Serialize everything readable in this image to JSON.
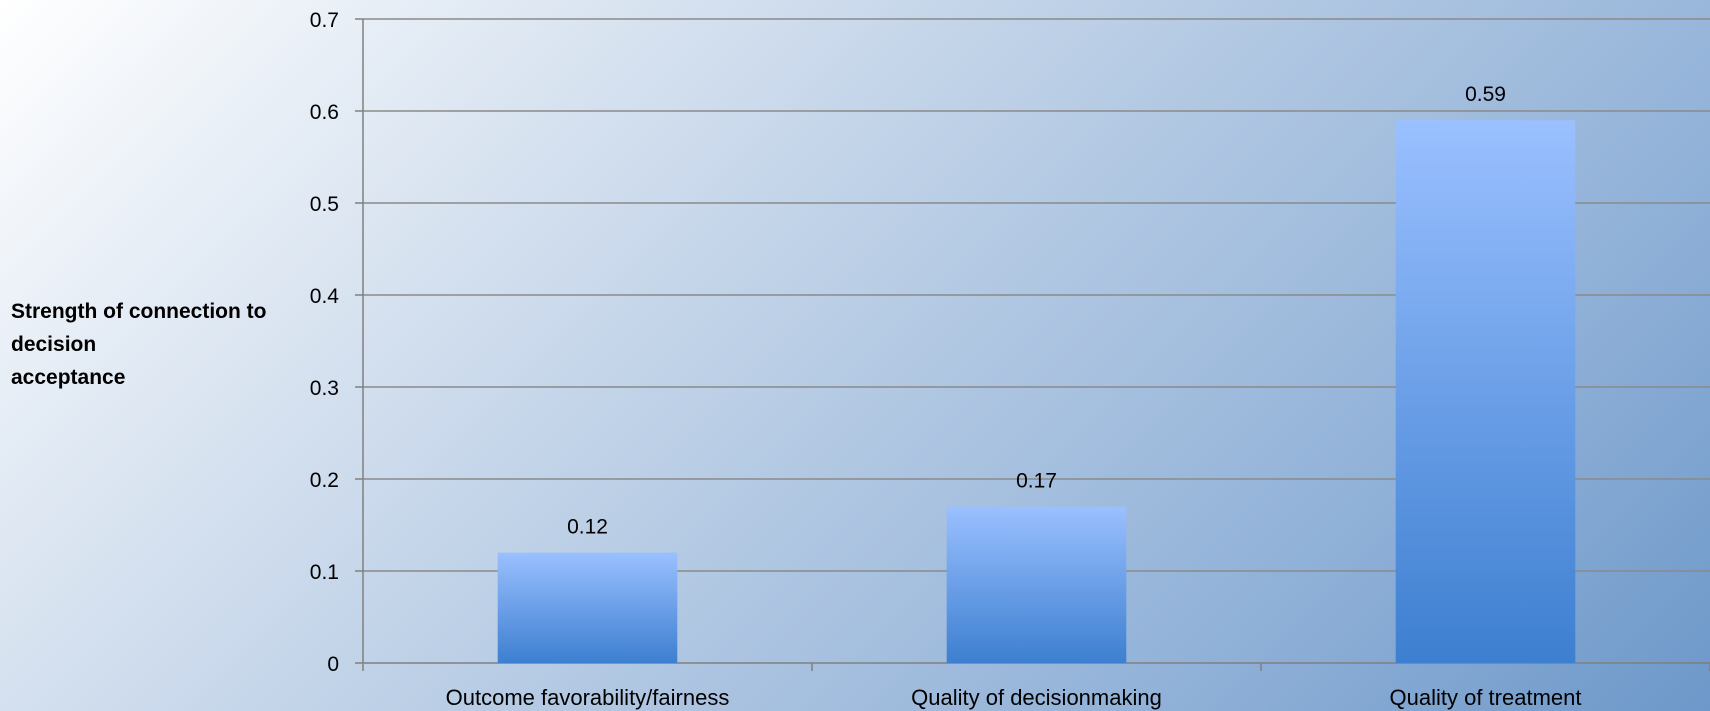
{
  "chart_data": {
    "type": "bar",
    "categories": [
      "Outcome favorability/fairness",
      "Quality of decisionmaking",
      "Quality of treatment"
    ],
    "values": [
      0.12,
      0.17,
      0.59
    ],
    "data_labels": [
      "0.12",
      "0.17",
      "0.59"
    ],
    "title": "",
    "xlabel": "",
    "ylabel_lines": [
      "Strength of connection to",
      "decision",
      "acceptance"
    ],
    "ylim": [
      0,
      0.7
    ],
    "yticks": [
      "0",
      "0.1",
      "0.2",
      "0.3",
      "0.4",
      "0.5",
      "0.6",
      "0.7"
    ],
    "ytick_values": [
      0,
      0.1,
      0.2,
      0.3,
      0.4,
      0.5,
      0.6,
      0.7
    ],
    "grid": true,
    "legend": "none",
    "colors": {
      "bar_top": "#9ac0ff",
      "bar_bottom": "#3d7fd0",
      "gridline": "#8a8a8a",
      "axis": "#808080",
      "text": "#000000"
    }
  }
}
